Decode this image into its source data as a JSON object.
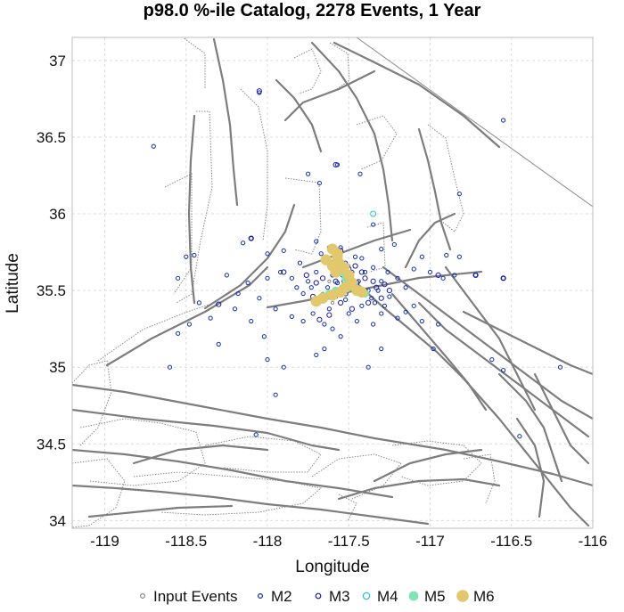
{
  "chart_data": {
    "type": "scatter",
    "title": "p98.0 %-ile Catalog, 2278 Events, 1 Year",
    "xlabel": "Longitude",
    "ylabel": "Latitude",
    "xlim": [
      -119.2,
      -116.0
    ],
    "ylim": [
      33.95,
      37.15
    ],
    "xticks": [
      -119,
      -118.5,
      -118,
      -117.5,
      -117,
      -116.5,
      -116
    ],
    "xtick_labels": [
      "-119",
      "-118.5",
      "-118",
      "-117.5",
      "-117",
      "-116.5",
      "-116"
    ],
    "yticks": [
      34,
      34.5,
      35,
      35.5,
      36,
      36.5,
      37
    ],
    "ytick_labels": [
      "34",
      "34.5",
      "35",
      "35.5",
      "36",
      "36.5",
      "37"
    ],
    "grid": true,
    "legend_position": "bottom",
    "series": [
      {
        "name": "Input Events",
        "color": "#8a8a8a",
        "filled": false,
        "points": [
          [
            -117.62,
            35.56
          ],
          [
            -117.55,
            35.62
          ],
          [
            -117.48,
            35.58
          ],
          [
            -117.58,
            35.5
          ],
          [
            -117.66,
            35.48
          ],
          [
            -117.5,
            35.66
          ],
          [
            -117.44,
            35.52
          ],
          [
            -117.6,
            35.42
          ]
        ]
      },
      {
        "name": "M2",
        "color": "#0b2fb5",
        "filled": false,
        "points": [
          [
            -118.7,
            36.44
          ],
          [
            -116.55,
            36.61
          ],
          [
            -118.05,
            36.79
          ],
          [
            -117.57,
            36.32
          ],
          [
            -117.75,
            36.26
          ],
          [
            -117.68,
            36.2
          ],
          [
            -117.43,
            36.26
          ],
          [
            -116.82,
            36.13
          ],
          [
            -117.35,
            35.93
          ],
          [
            -118.1,
            35.84
          ],
          [
            -117.9,
            35.76
          ],
          [
            -118.45,
            35.73
          ],
          [
            -118.5,
            35.72
          ],
          [
            -118.15,
            35.81
          ],
          [
            -118.0,
            35.74
          ],
          [
            -117.7,
            35.82
          ],
          [
            -117.62,
            35.78
          ],
          [
            -117.3,
            35.77
          ],
          [
            -117.22,
            35.8
          ],
          [
            -117.05,
            35.72
          ],
          [
            -116.9,
            35.73
          ],
          [
            -116.82,
            35.72
          ],
          [
            -117.1,
            35.64
          ],
          [
            -117.0,
            35.62
          ],
          [
            -116.92,
            35.58
          ],
          [
            -116.85,
            35.6
          ],
          [
            -116.72,
            35.6
          ],
          [
            -116.55,
            35.58
          ],
          [
            -118.25,
            35.6
          ],
          [
            -118.12,
            35.55
          ],
          [
            -118.0,
            35.58
          ],
          [
            -117.92,
            35.62
          ],
          [
            -117.85,
            35.58
          ],
          [
            -118.18,
            35.48
          ],
          [
            -118.05,
            35.45
          ],
          [
            -117.95,
            35.38
          ],
          [
            -117.85,
            35.33
          ],
          [
            -117.78,
            35.3
          ],
          [
            -117.72,
            35.35
          ],
          [
            -117.65,
            35.28
          ],
          [
            -117.6,
            35.25
          ],
          [
            -117.55,
            35.2
          ],
          [
            -117.45,
            35.3
          ],
          [
            -117.35,
            35.28
          ],
          [
            -117.3,
            35.35
          ],
          [
            -117.2,
            35.32
          ],
          [
            -117.15,
            35.36
          ],
          [
            -117.1,
            35.4
          ],
          [
            -117.05,
            35.3
          ],
          [
            -116.95,
            35.28
          ],
          [
            -118.2,
            35.38
          ],
          [
            -118.1,
            35.3
          ],
          [
            -118.02,
            35.2
          ],
          [
            -118.0,
            35.05
          ],
          [
            -117.9,
            35.0
          ],
          [
            -117.7,
            35.08
          ],
          [
            -117.65,
            35.12
          ],
          [
            -118.3,
            35.15
          ],
          [
            -118.35,
            35.32
          ],
          [
            -118.55,
            35.22
          ],
          [
            -118.6,
            35.0
          ],
          [
            -116.98,
            35.12
          ],
          [
            -116.62,
            35.05
          ],
          [
            -116.55,
            34.98
          ],
          [
            -116.2,
            35.0
          ],
          [
            -116.45,
            34.55
          ],
          [
            -117.95,
            34.82
          ],
          [
            -118.07,
            34.56
          ],
          [
            -118.55,
            35.58
          ],
          [
            -118.42,
            35.42
          ],
          [
            -118.48,
            35.28
          ],
          [
            -117.3,
            35.12
          ],
          [
            -117.38,
            35.0
          ],
          [
            -117.52,
            35.68
          ],
          [
            -117.58,
            35.74
          ],
          [
            -117.42,
            35.71
          ],
          [
            -117.35,
            35.65
          ],
          [
            -117.65,
            35.7
          ],
          [
            -117.7,
            35.62
          ],
          [
            -117.75,
            35.56
          ],
          [
            -117.78,
            35.48
          ],
          [
            -117.7,
            35.42
          ],
          [
            -117.62,
            35.38
          ],
          [
            -117.5,
            35.35
          ],
          [
            -117.42,
            35.4
          ],
          [
            -117.36,
            35.45
          ],
          [
            -117.32,
            35.5
          ],
          [
            -117.3,
            35.56
          ],
          [
            -117.26,
            35.62
          ],
          [
            -117.2,
            35.58
          ],
          [
            -117.15,
            35.52
          ],
          [
            -117.25,
            35.46
          ],
          [
            -117.4,
            35.62
          ],
          [
            -117.46,
            35.72
          ],
          [
            -117.55,
            35.78
          ],
          [
            -117.67,
            35.74
          ],
          [
            -117.8,
            35.68
          ],
          [
            -117.82,
            35.52
          ],
          [
            -117.73,
            35.52
          ],
          [
            -117.57,
            35.55
          ],
          [
            -117.52,
            35.44
          ],
          [
            -117.45,
            35.48
          ],
          [
            -117.6,
            35.6
          ],
          [
            -117.54,
            35.6
          ],
          [
            -117.48,
            35.62
          ],
          [
            -117.53,
            35.56
          ],
          [
            -117.58,
            35.46
          ],
          [
            -117.63,
            35.52
          ],
          [
            -117.44,
            35.56
          ],
          [
            -117.38,
            35.5
          ],
          [
            -117.34,
            35.42
          ],
          [
            -117.28,
            35.4
          ]
        ]
      },
      {
        "name": "M3",
        "color": "#1a1aa8",
        "filled": false,
        "points": [
          [
            -118.05,
            36.8
          ],
          [
            -117.58,
            36.32
          ],
          [
            -117.55,
            35.76
          ],
          [
            -118.1,
            35.84
          ],
          [
            -117.9,
            35.62
          ],
          [
            -118.3,
            35.41
          ],
          [
            -117.68,
            35.31
          ],
          [
            -117.62,
            35.34
          ],
          [
            -117.45,
            35.55
          ],
          [
            -117.4,
            35.5
          ],
          [
            -117.35,
            35.56
          ],
          [
            -117.6,
            35.65
          ],
          [
            -117.66,
            35.58
          ],
          [
            -117.52,
            35.48
          ],
          [
            -117.48,
            35.38
          ],
          [
            -117.3,
            35.45
          ],
          [
            -117.25,
            35.5
          ],
          [
            -117.42,
            35.62
          ],
          [
            -117.55,
            35.42
          ],
          [
            -117.72,
            35.46
          ],
          [
            -117.7,
            35.55
          ],
          [
            -117.76,
            35.6
          ],
          [
            -117.5,
            35.64
          ],
          [
            -117.4,
            35.58
          ],
          [
            -117.33,
            35.52
          ],
          [
            -117.28,
            35.54
          ],
          [
            -117.62,
            35.48
          ],
          [
            -117.58,
            35.56
          ],
          [
            -117.46,
            35.66
          ],
          [
            -117.38,
            35.42
          ],
          [
            -116.95,
            35.6
          ],
          [
            -116.72,
            35.6
          ],
          [
            -116.55,
            35.58
          ]
        ]
      },
      {
        "name": "M4",
        "color": "#23c3df",
        "filled": false,
        "points": [
          [
            -117.35,
            36.0
          ],
          [
            -117.6,
            35.68
          ],
          [
            -117.54,
            35.52
          ],
          [
            -117.46,
            35.54
          ],
          [
            -117.62,
            35.46
          ],
          [
            -117.52,
            35.6
          ]
        ]
      },
      {
        "name": "M5",
        "color": "#7fe6b1",
        "filled": true,
        "points": [
          [
            -117.58,
            35.66
          ],
          [
            -117.55,
            35.62
          ],
          [
            -117.52,
            35.58
          ],
          [
            -117.48,
            35.55
          ],
          [
            -117.62,
            35.48
          ],
          [
            -117.66,
            35.45
          ],
          [
            -117.58,
            35.5
          ],
          [
            -117.5,
            35.52
          ],
          [
            -117.44,
            35.5
          ],
          [
            -117.4,
            35.48
          ]
        ]
      },
      {
        "name": "M6",
        "color": "#e2c86a",
        "filled": true,
        "points": [
          [
            -117.6,
            35.77
          ],
          [
            -117.57,
            35.72
          ],
          [
            -117.56,
            35.68
          ],
          [
            -117.53,
            35.65
          ],
          [
            -117.5,
            35.6
          ],
          [
            -117.52,
            35.52
          ],
          [
            -117.48,
            35.55
          ],
          [
            -117.55,
            35.49
          ],
          [
            -117.6,
            35.47
          ],
          [
            -117.66,
            35.45
          ],
          [
            -117.7,
            35.43
          ],
          [
            -117.45,
            35.5
          ],
          [
            -117.42,
            35.49
          ],
          [
            -117.58,
            35.62
          ],
          [
            -117.6,
            35.66
          ],
          [
            -117.64,
            35.7
          ],
          [
            -117.57,
            35.74
          ]
        ]
      }
    ]
  }
}
